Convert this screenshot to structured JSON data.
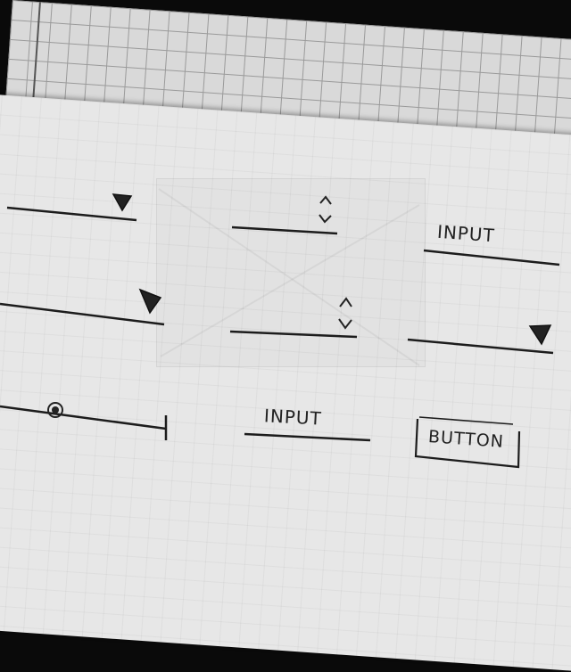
{
  "sketch": {
    "input_1_label": "INPUT",
    "input_2_label": "INPUT",
    "button_label": "BUTTON"
  }
}
